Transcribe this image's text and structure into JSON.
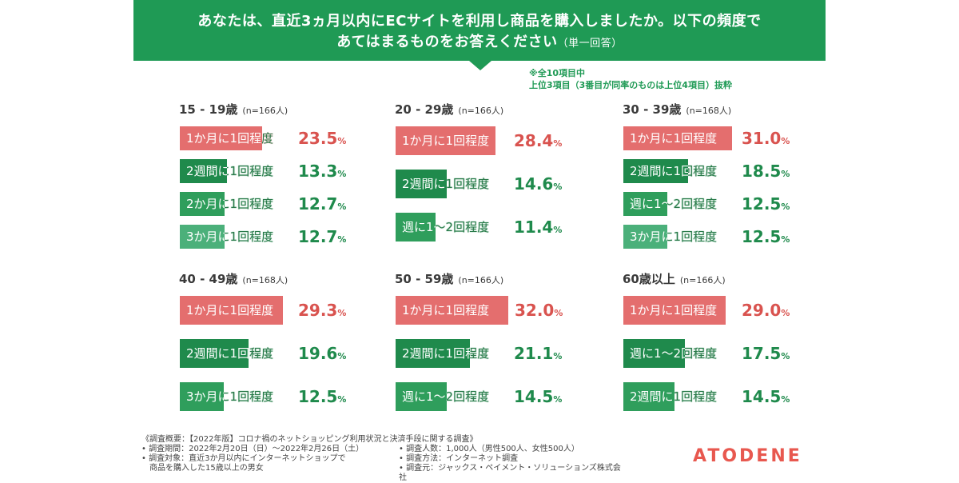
{
  "header": {
    "question_line1": "あなたは、直近3ヵ月以内にECサイトを利用し商品を購入しましたか。以下の頻度で",
    "question_line2": "あてはまるものをお答えください",
    "question_suffix": "（単一回答）"
  },
  "note": {
    "line1": "※全10項目中",
    "line2": "上位3項目（3番目が同率のものは上位4項目）抜粋"
  },
  "colors": {
    "banner": "#1f9a55",
    "top_bar": "#e46e6e",
    "dark_green": "#1f8a4c",
    "mid_green": "#2f9e5c",
    "light_green": "#4bb07a",
    "red_text": "#d9534f"
  },
  "chart_data": [
    {
      "type": "bar",
      "title": "15 - 19歳",
      "n_label": "(n=166人)",
      "categories": [
        "1か月に1回程度",
        "2週間に1回程度",
        "2か月に1回程度",
        "3か月に1回程度"
      ],
      "values": [
        23.5,
        13.3,
        12.7,
        12.7
      ],
      "value_labels": [
        "23.5",
        "13.3",
        "12.7",
        "12.7"
      ],
      "unit": "%"
    },
    {
      "type": "bar",
      "title": "20 - 29歳",
      "n_label": "(n=166人)",
      "categories": [
        "1か月に1回程度",
        "2週間に1回程度",
        "週に1〜2回程度"
      ],
      "values": [
        28.4,
        14.6,
        11.4
      ],
      "value_labels": [
        "28.4",
        "14.6",
        "11.4"
      ],
      "unit": "%"
    },
    {
      "type": "bar",
      "title": "30 - 39歳",
      "n_label": "(n=168人)",
      "categories": [
        "1か月に1回程度",
        "2週間に1回程度",
        "週に1〜2回程度",
        "3か月に1回程度"
      ],
      "values": [
        31.0,
        18.5,
        12.5,
        12.5
      ],
      "value_labels": [
        "31.0",
        "18.5",
        "12.5",
        "12.5"
      ],
      "unit": "%"
    },
    {
      "type": "bar",
      "title": "40 - 49歳",
      "n_label": "(n=168人)",
      "categories": [
        "1か月に1回程度",
        "2週間に1回程度",
        "3か月に1回程度"
      ],
      "values": [
        29.3,
        19.6,
        12.5
      ],
      "value_labels": [
        "29.3",
        "19.6",
        "12.5"
      ],
      "unit": "%"
    },
    {
      "type": "bar",
      "title": "50 - 59歳",
      "n_label": "(n=166人)",
      "categories": [
        "1か月に1回程度",
        "2週間に1回程度",
        "週に1〜2回程度"
      ],
      "values": [
        32.0,
        21.1,
        14.5
      ],
      "value_labels": [
        "32.0",
        "21.1",
        "14.5"
      ],
      "unit": "%"
    },
    {
      "type": "bar",
      "title": "60歳以上",
      "n_label": "(n=166人)",
      "categories": [
        "1か月に1回程度",
        "週に1〜2回程度",
        "2週間に1回程度"
      ],
      "values": [
        29.0,
        17.5,
        14.5
      ],
      "value_labels": [
        "29.0",
        "17.5",
        "14.5"
      ],
      "unit": "%"
    }
  ],
  "footer": {
    "overview": "《調査概要：【2022年版】コロナ禍のネットショッピング利用状況と決済手段に関する調査》",
    "period": "• 調査期間：2022年2月20日（日）〜2022年2月26日（土）",
    "target_1": "• 調査対象：直近3か月以内にインターネットショップで",
    "target_2": "商品を購入した15歳以上の男女",
    "count": "• 調査人数：1,000人（男性500人、女性500人）",
    "method": "• 調査方法：インターネット調査",
    "org": "• 調査元：ジャックス・ペイメント・ソリューションズ株式会社"
  },
  "logo": "ATODENE"
}
